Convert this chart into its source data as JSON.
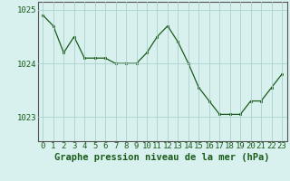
{
  "x": [
    0,
    1,
    2,
    3,
    4,
    5,
    6,
    7,
    8,
    9,
    10,
    11,
    12,
    13,
    14,
    15,
    16,
    17,
    18,
    19,
    20,
    21,
    22,
    23
  ],
  "y": [
    1024.9,
    1024.7,
    1024.2,
    1024.5,
    1024.1,
    1024.1,
    1024.1,
    1024.0,
    1024.0,
    1024.0,
    1024.2,
    1024.5,
    1024.7,
    1024.4,
    1024.0,
    1023.55,
    1023.3,
    1023.05,
    1023.05,
    1023.05,
    1023.3,
    1023.3,
    1023.55,
    1023.8
  ],
  "line_color": "#1a5c1a",
  "marker_color": "#1a5c1a",
  "bg_color": "#d8f0ee",
  "grid_color": "#aad0cc",
  "xlabel": "Graphe pression niveau de la mer (hPa)",
  "ylim_min": 1022.55,
  "ylim_max": 1025.15,
  "yticks": [
    1023,
    1024,
    1025
  ],
  "xticks": [
    0,
    1,
    2,
    3,
    4,
    5,
    6,
    7,
    8,
    9,
    10,
    11,
    12,
    13,
    14,
    15,
    16,
    17,
    18,
    19,
    20,
    21,
    22,
    23
  ],
  "xlabel_fontsize": 7.5,
  "tick_fontsize": 6.5,
  "xlabel_fontweight": "bold"
}
